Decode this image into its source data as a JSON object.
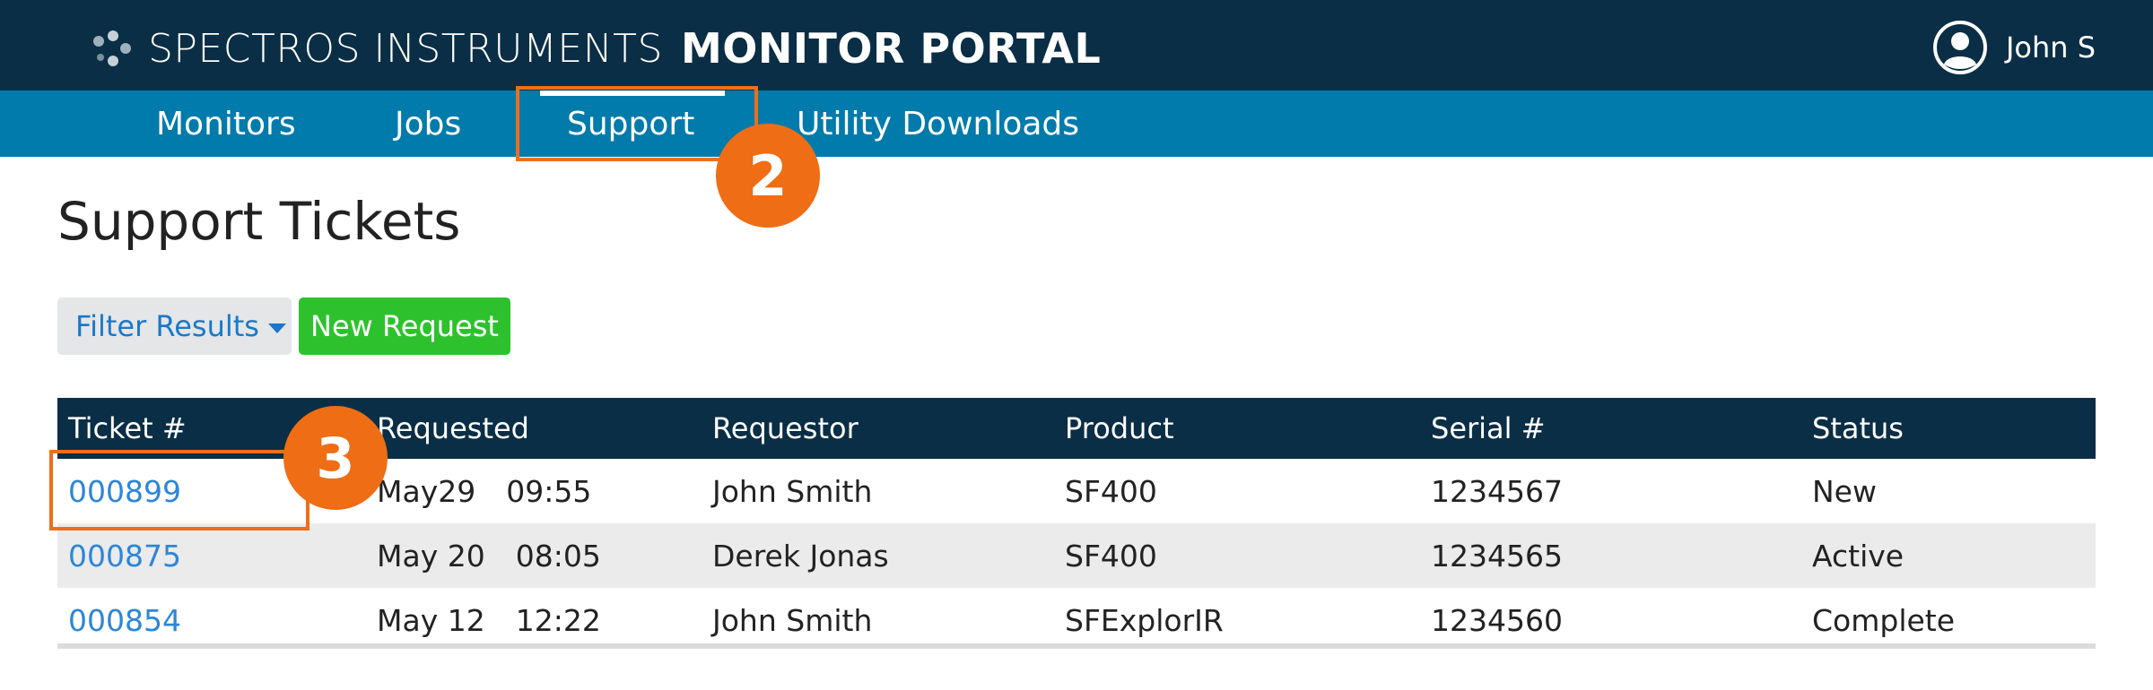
{
  "header": {
    "brand": "SPECTROS INSTRUMENTS",
    "portal": "MONITOR PORTAL",
    "user_name": "John S",
    "logo_icon": "dots-logo-icon",
    "avatar_icon": "user-avatar-icon"
  },
  "nav": {
    "items": [
      {
        "label": "Monitors"
      },
      {
        "label": "Jobs"
      },
      {
        "label": "Support",
        "active": true
      },
      {
        "label": "Utility Downloads"
      }
    ]
  },
  "annotations": {
    "badge_2": "2",
    "badge_3": "3",
    "color": "#ef6d14"
  },
  "page": {
    "title": "Support Tickets",
    "filter_label": "Filter Results",
    "new_request_label": "New Request"
  },
  "table": {
    "headers": [
      "Ticket #",
      "Requested",
      "Requestor",
      "Product",
      "Serial #",
      "Status"
    ],
    "rows": [
      {
        "ticket": "000899",
        "date": "May29",
        "time": "09:55",
        "requestor": "John Smith",
        "product": "SF400",
        "serial": "1234567",
        "status": "New"
      },
      {
        "ticket": "000875",
        "date": "May 20",
        "time": "08:05",
        "requestor": "Derek Jonas",
        "product": "SF400",
        "serial": "1234565",
        "status": "Active"
      },
      {
        "ticket": "000854",
        "date": "May 12",
        "time": "12:22",
        "requestor": "John Smith",
        "product": "SFExplorIR",
        "serial": "1234560",
        "status": "Complete"
      }
    ]
  },
  "colors": {
    "header_bg": "#0a2e45",
    "nav_bg": "#017bab",
    "link": "#2d86d6",
    "new_button": "#2dc22d",
    "highlight": "#ee6e1a"
  }
}
